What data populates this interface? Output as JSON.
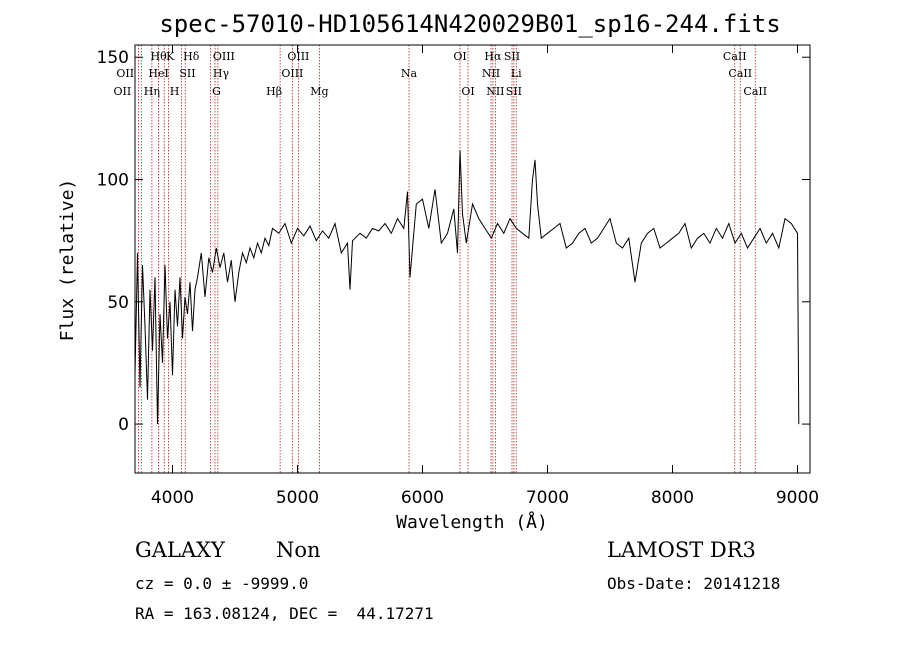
{
  "chart_data": {
    "type": "line",
    "title": "spec-57010-HD105614N420029B01_sp16-244.fits",
    "xlabel": "Wavelength (Å)",
    "ylabel": "Flux (relative)",
    "xlim": [
      3700,
      9100
    ],
    "ylim": [
      -20,
      155
    ],
    "xticks": [
      4000,
      5000,
      6000,
      7000,
      8000,
      9000
    ],
    "yticks": [
      0,
      50,
      100,
      150
    ],
    "grid": false,
    "series": [
      {
        "x": [
          3700,
          3720,
          3740,
          3760,
          3780,
          3800,
          3820,
          3840,
          3860,
          3880,
          3900,
          3920,
          3940,
          3960,
          3980,
          4000,
          4020,
          4040,
          4060,
          4080,
          4100,
          4120,
          4140,
          4160,
          4180,
          4200,
          4230,
          4260,
          4290,
          4320,
          4350,
          4380,
          4410,
          4440,
          4470,
          4500,
          4530,
          4560,
          4590,
          4620,
          4650,
          4680,
          4710,
          4740,
          4770,
          4800,
          4850,
          4900,
          4950,
          5000,
          5050,
          5100,
          5150,
          5200,
          5250,
          5300,
          5350,
          5400,
          5420,
          5440,
          5500,
          5550,
          5600,
          5650,
          5700,
          5750,
          5800,
          5850,
          5880,
          5900,
          5950,
          6000,
          6050,
          6100,
          6150,
          6200,
          6250,
          6280,
          6300,
          6320,
          6350,
          6400,
          6450,
          6500,
          6550,
          6600,
          6650,
          6700,
          6750,
          6800,
          6850,
          6880,
          6900,
          6920,
          6950,
          7000,
          7050,
          7100,
          7150,
          7200,
          7250,
          7300,
          7350,
          7400,
          7450,
          7500,
          7550,
          7600,
          7650,
          7700,
          7750,
          7800,
          7850,
          7900,
          7950,
          8000,
          8050,
          8100,
          8150,
          8200,
          8250,
          8300,
          8350,
          8400,
          8450,
          8500,
          8550,
          8600,
          8650,
          8700,
          8750,
          8800,
          8850,
          8900,
          8950,
          9000,
          9010
        ],
        "y": [
          20,
          70,
          15,
          65,
          40,
          10,
          55,
          30,
          60,
          0,
          45,
          25,
          65,
          35,
          50,
          20,
          55,
          40,
          60,
          35,
          52,
          45,
          58,
          38,
          55,
          60,
          70,
          52,
          68,
          62,
          72,
          64,
          70,
          58,
          67,
          50,
          62,
          70,
          66,
          72,
          68,
          74,
          70,
          76,
          73,
          80,
          78,
          82,
          74,
          80,
          77,
          81,
          75,
          79,
          76,
          82,
          70,
          74,
          55,
          75,
          78,
          76,
          80,
          79,
          82,
          78,
          84,
          80,
          95,
          60,
          90,
          92,
          80,
          96,
          74,
          78,
          88,
          70,
          112,
          86,
          74,
          90,
          84,
          80,
          76,
          82,
          78,
          84,
          80,
          78,
          76,
          100,
          108,
          90,
          76,
          78,
          80,
          82,
          72,
          74,
          78,
          80,
          74,
          76,
          80,
          84,
          74,
          72,
          76,
          58,
          74,
          78,
          80,
          72,
          74,
          76,
          78,
          82,
          72,
          76,
          78,
          74,
          80,
          76,
          82,
          74,
          78,
          72,
          76,
          80,
          74,
          78,
          72,
          84,
          82,
          78,
          0
        ],
        "color": "#000000"
      }
    ],
    "lines": [
      {
        "w": 3727,
        "label": "OII",
        "row": 2,
        "dx": -16
      },
      {
        "w": 3750,
        "label": "OII",
        "row": 1,
        "dx": -16
      },
      {
        "w": 3835,
        "label": "Hη",
        "row": 2,
        "dx": 0
      },
      {
        "w": 3889,
        "label": "Hθ",
        "row": 0,
        "dx": 0
      },
      {
        "w": 3889,
        "label": "HeI",
        "row": 1,
        "dx": 0
      },
      {
        "w": 3934,
        "label": "K",
        "row": 0,
        "dx": 6
      },
      {
        "w": 3968,
        "label": "H",
        "row": 2,
        "dx": 6
      },
      {
        "w": 4072,
        "label": "SII",
        "row": 1,
        "dx": 6
      },
      {
        "w": 4102,
        "label": "Hδ",
        "row": 0,
        "dx": 6
      },
      {
        "w": 4304,
        "label": "G",
        "row": 2,
        "dx": 6
      },
      {
        "w": 4340,
        "label": "Hγ",
        "row": 1,
        "dx": 6
      },
      {
        "w": 4363,
        "label": "OIII",
        "row": 0,
        "dx": 6
      },
      {
        "w": 4861,
        "label": "Hβ",
        "row": 2,
        "dx": -6
      },
      {
        "w": 4959,
        "label": "OIII",
        "row": 1,
        "dx": 0
      },
      {
        "w": 5007,
        "label": "OIII",
        "row": 0,
        "dx": 0
      },
      {
        "w": 5175,
        "label": "Mg",
        "row": 2,
        "dx": 0
      },
      {
        "w": 5892,
        "label": "Na",
        "row": 1,
        "dx": 0
      },
      {
        "w": 6300,
        "label": "OI",
        "row": 0,
        "dx": 0
      },
      {
        "w": 6364,
        "label": "OI",
        "row": 2,
        "dx": 0
      },
      {
        "w": 6548,
        "label": "NII",
        "row": 1,
        "dx": 0
      },
      {
        "w": 6563,
        "label": "Hα",
        "row": 0,
        "dx": 0
      },
      {
        "w": 6583,
        "label": "NII",
        "row": 2,
        "dx": 0
      },
      {
        "w": 6716,
        "label": "SII",
        "row": 0,
        "dx": 0
      },
      {
        "w": 6731,
        "label": "SII",
        "row": 2,
        "dx": 0
      },
      {
        "w": 6750,
        "label": "Li",
        "row": 1,
        "dx": 0
      },
      {
        "w": 8498,
        "label": "CaII",
        "row": 0,
        "dx": 0
      },
      {
        "w": 8542,
        "label": "CaII",
        "row": 1,
        "dx": 0
      },
      {
        "w": 8662,
        "label": "CaII",
        "row": 2,
        "dx": 0
      }
    ]
  },
  "footer": {
    "object_class": "GALAXY",
    "subclass": "Non",
    "survey": "LAMOST DR3",
    "cz": "cz = 0.0 ± -9999.0",
    "obs_date": "Obs-Date: 20141218",
    "radec": "RA = 163.08124, DEC =  44.17271"
  }
}
